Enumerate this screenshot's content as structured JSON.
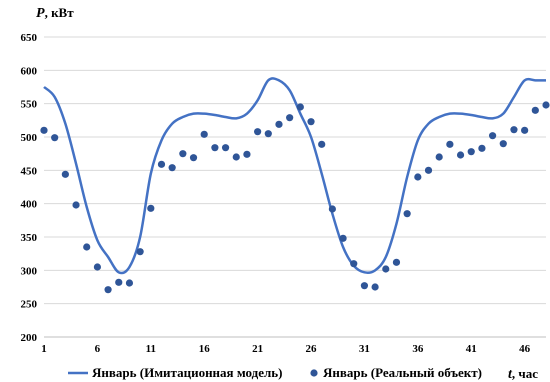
{
  "chart_data": {
    "type": "line",
    "y_title": "P",
    "y_unit": ", кВт",
    "x_title": "t",
    "x_unit": ", час",
    "xlim": [
      1,
      48
    ],
    "ylim": [
      200,
      650
    ],
    "y_ticks": [
      200,
      250,
      300,
      350,
      400,
      450,
      500,
      550,
      600,
      650
    ],
    "x_ticks": [
      1,
      6,
      11,
      16,
      21,
      26,
      31,
      36,
      41,
      46
    ],
    "grid": "horizontal",
    "legend_position": "bottom",
    "series": [
      {
        "name": "Январь (Имитационная модель)",
        "style": "line",
        "color": "#4472C4",
        "x": [
          1,
          2,
          3,
          4,
          5,
          6,
          7,
          8,
          9,
          10,
          11,
          12,
          13,
          14,
          15,
          16,
          17,
          18,
          19,
          20,
          21,
          22,
          23,
          24,
          25,
          26,
          27,
          28,
          29,
          30,
          31,
          32,
          33,
          34,
          35,
          36,
          37,
          38,
          39,
          40,
          41,
          42,
          43,
          44,
          45,
          46,
          47,
          48
        ],
        "values": [
          575,
          560,
          520,
          460,
          395,
          345,
          320,
          297,
          305,
          350,
          445,
          495,
          520,
          530,
          535,
          535,
          533,
          530,
          528,
          535,
          555,
          585,
          585,
          570,
          535,
          500,
          445,
          385,
          335,
          307,
          297,
          300,
          320,
          370,
          440,
          495,
          520,
          530,
          535,
          535,
          533,
          530,
          528,
          535,
          560,
          585,
          585,
          585
        ]
      },
      {
        "name": "Январь (Реальный объект)",
        "style": "markers",
        "color": "#2F5597",
        "x": [
          1,
          2,
          3,
          4,
          5,
          6,
          7,
          8,
          9,
          10,
          11,
          12,
          13,
          14,
          15,
          16,
          17,
          18,
          19,
          20,
          21,
          22,
          23,
          24,
          25,
          26,
          27,
          28,
          29,
          30,
          31,
          32,
          33,
          34,
          35,
          36,
          37,
          38,
          39,
          40,
          41,
          42,
          43,
          44,
          45,
          46,
          47,
          48
        ],
        "values": [
          510,
          499,
          444,
          398,
          335,
          305,
          271,
          282,
          281,
          328,
          393,
          459,
          454,
          475,
          469,
          504,
          484,
          484,
          470,
          474,
          508,
          505,
          519,
          529,
          545,
          523,
          489,
          392,
          348,
          310,
          277,
          275,
          302,
          312,
          385,
          440,
          450,
          470,
          489,
          473,
          478,
          483,
          502,
          490,
          511,
          510,
          540,
          548
        ]
      }
    ]
  }
}
